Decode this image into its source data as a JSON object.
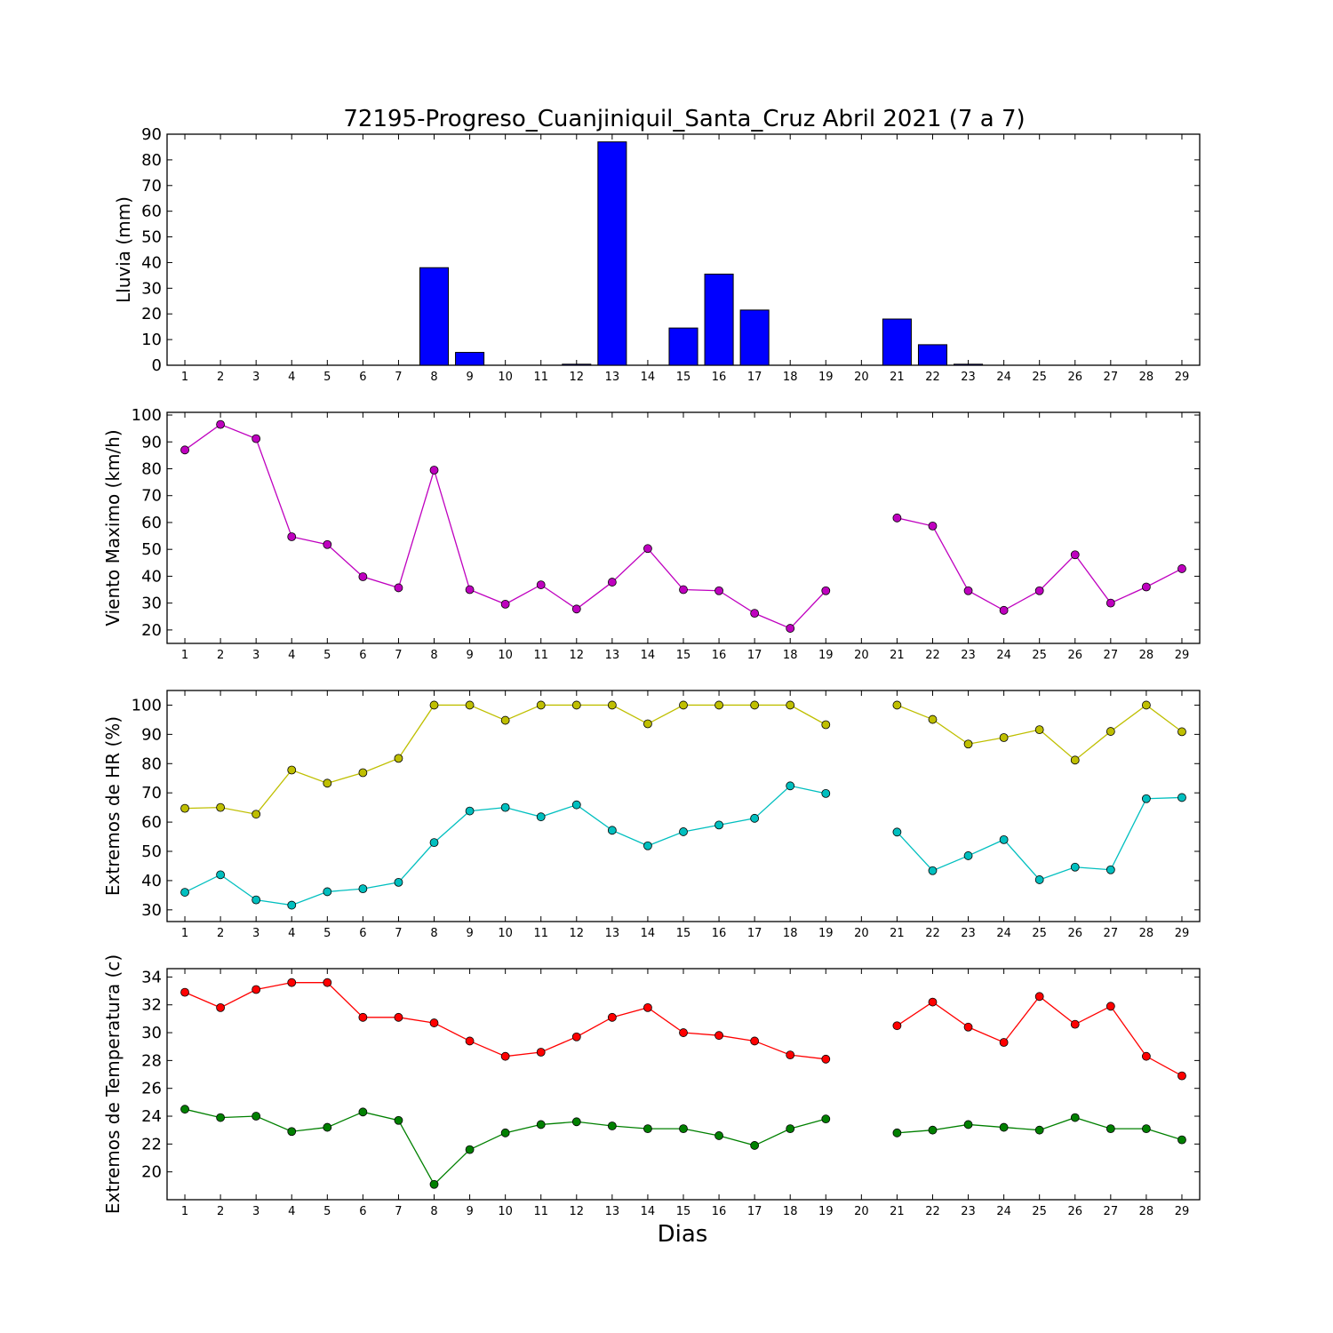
{
  "figure": {
    "title": "72195-Progreso_Cuanjiniquil_Santa_Cruz Abril 2021  (7 a 7)",
    "xlabel": "Dias"
  },
  "chart_data": [
    {
      "type": "bar",
      "ylabel": "Lluvia (mm)",
      "ylim": [
        0,
        90
      ],
      "yticks": [
        0,
        10,
        20,
        30,
        40,
        50,
        60,
        70,
        80,
        90
      ],
      "x": [
        1,
        2,
        3,
        4,
        5,
        6,
        7,
        8,
        9,
        10,
        11,
        12,
        13,
        14,
        15,
        16,
        17,
        18,
        19,
        20,
        21,
        22,
        23,
        24,
        25,
        26,
        27,
        28,
        29
      ],
      "series": [
        {
          "color": "#0000ff",
          "values": [
            0,
            0,
            0,
            0,
            0,
            0,
            0,
            38,
            5,
            0,
            0,
            0.4,
            87,
            0,
            14.5,
            35.5,
            21.5,
            0,
            0,
            0,
            18,
            8,
            0.4,
            0,
            0,
            0,
            0,
            0,
            0
          ]
        }
      ]
    },
    {
      "type": "line",
      "ylabel": "Viento Maximo (km/h)",
      "ylim": [
        15,
        101
      ],
      "yticks": [
        20,
        30,
        40,
        50,
        60,
        70,
        80,
        90,
        100
      ],
      "x": [
        1,
        2,
        3,
        4,
        5,
        6,
        7,
        8,
        9,
        10,
        11,
        12,
        13,
        14,
        15,
        16,
        17,
        18,
        19,
        20,
        21,
        22,
        23,
        24,
        25,
        26,
        27,
        28,
        29
      ],
      "series": [
        {
          "color": "#bf00bf",
          "values": [
            87,
            96.5,
            91.2,
            54.7,
            51.8,
            39.8,
            35.7,
            79.5,
            35,
            29.6,
            36.8,
            27.8,
            37.8,
            50.3,
            35,
            34.6,
            26.2,
            20.6,
            34.6,
            null,
            61.7,
            58.7,
            34.6,
            27.3,
            34.6,
            48,
            30,
            36,
            42.8
          ]
        }
      ]
    },
    {
      "type": "line",
      "ylabel": "Extremos de HR (%)",
      "ylim": [
        26,
        105
      ],
      "yticks": [
        30,
        40,
        50,
        60,
        70,
        80,
        90,
        100
      ],
      "x": [
        1,
        2,
        3,
        4,
        5,
        6,
        7,
        8,
        9,
        10,
        11,
        12,
        13,
        14,
        15,
        16,
        17,
        18,
        19,
        20,
        21,
        22,
        23,
        24,
        25,
        26,
        27,
        28,
        29
      ],
      "series": [
        {
          "color": "#bfbf00",
          "values": [
            64.7,
            65,
            62.7,
            77.8,
            73.3,
            76.9,
            81.8,
            100,
            100,
            94.8,
            100,
            100,
            100,
            93.6,
            100,
            100,
            100,
            100,
            93.3,
            null,
            100,
            95.1,
            86.7,
            88.9,
            91.6,
            81.2,
            91,
            100,
            90.9
          ]
        },
        {
          "color": "#00bfbf",
          "values": [
            36,
            42,
            33.4,
            31.6,
            36.2,
            37.2,
            39.4,
            53,
            63.8,
            65,
            61.8,
            65.9,
            57.2,
            51.9,
            56.7,
            59,
            61.3,
            72.4,
            69.8,
            null,
            56.6,
            43.4,
            48.5,
            54,
            40.3,
            44.6,
            43.7,
            68,
            68.4
          ]
        }
      ]
    },
    {
      "type": "line",
      "ylabel": "Extremos de Temperatura (c)",
      "ylim": [
        18,
        34.6
      ],
      "yticks": [
        20,
        22,
        24,
        26,
        28,
        30,
        32,
        34
      ],
      "x": [
        1,
        2,
        3,
        4,
        5,
        6,
        7,
        8,
        9,
        10,
        11,
        12,
        13,
        14,
        15,
        16,
        17,
        18,
        19,
        20,
        21,
        22,
        23,
        24,
        25,
        26,
        27,
        28,
        29
      ],
      "series": [
        {
          "color": "#ff0000",
          "values": [
            32.9,
            31.8,
            33.1,
            33.6,
            33.6,
            31.1,
            31.1,
            30.7,
            29.4,
            28.3,
            28.6,
            29.7,
            31.1,
            31.8,
            30,
            29.8,
            29.4,
            28.4,
            28.1,
            null,
            30.5,
            32.2,
            30.4,
            29.3,
            32.6,
            30.6,
            31.9,
            28.3,
            26.9
          ]
        },
        {
          "color": "#008000",
          "values": [
            24.5,
            23.9,
            24,
            22.9,
            23.2,
            24.3,
            23.7,
            19.1,
            21.6,
            22.8,
            23.4,
            23.6,
            23.3,
            23.1,
            23.1,
            22.6,
            21.9,
            23.1,
            23.8,
            null,
            22.8,
            23,
            23.4,
            23.2,
            23,
            23.9,
            23.1,
            23.1,
            22.3
          ]
        }
      ]
    }
  ]
}
